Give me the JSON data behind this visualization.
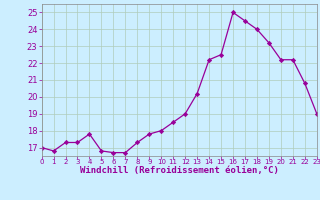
{
  "x": [
    0,
    1,
    2,
    3,
    4,
    5,
    6,
    7,
    8,
    9,
    10,
    11,
    12,
    13,
    14,
    15,
    16,
    17,
    18,
    19,
    20,
    21,
    22,
    23
  ],
  "y": [
    17.0,
    16.8,
    17.3,
    17.3,
    17.8,
    16.8,
    16.7,
    16.7,
    17.3,
    17.8,
    18.0,
    18.5,
    19.0,
    20.2,
    22.2,
    22.5,
    25.0,
    24.5,
    24.0,
    23.2,
    22.2,
    22.2,
    20.8,
    19.0
  ],
  "xlim": [
    0,
    23
  ],
  "ylim": [
    16.5,
    25.5
  ],
  "yticks": [
    17,
    18,
    19,
    20,
    21,
    22,
    23,
    24,
    25
  ],
  "xtick_labels": [
    "0",
    "1",
    "2",
    "3",
    "4",
    "5",
    "6",
    "7",
    "8",
    "9",
    "10",
    "11",
    "12",
    "13",
    "14",
    "15",
    "16",
    "17",
    "18",
    "19",
    "20",
    "21",
    "22",
    "23"
  ],
  "xlabel": "Windchill (Refroidissement éolien,°C)",
  "line_color": "#990099",
  "marker_color": "#990099",
  "bg_color": "#cceeff",
  "grid_color": "#b0ccbb",
  "label_color": "#990099",
  "tick_color": "#990099",
  "spine_color": "#888888"
}
